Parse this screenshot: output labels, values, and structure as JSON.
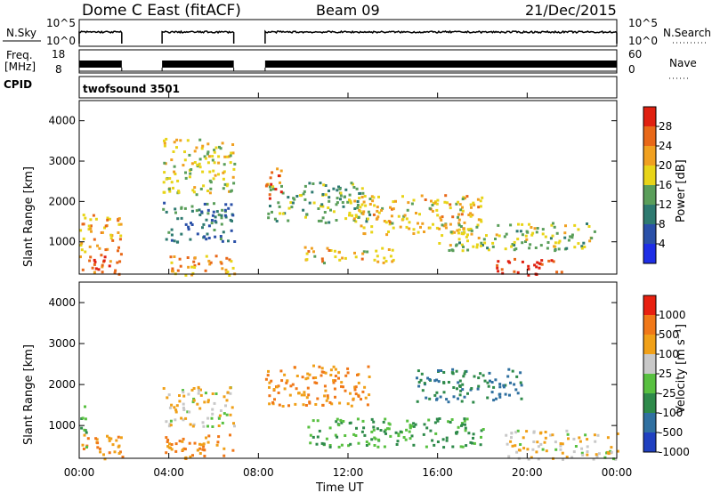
{
  "header": {
    "station": "Dome C East (fitACF)",
    "beam": "Beam 09",
    "date": "21/Dec/2015"
  },
  "top_panels": {
    "nsky_label": "N.Sky",
    "nsky_ticks": [
      "10^5",
      "10^0"
    ],
    "nsearch_label": "N.Search",
    "nsearch_ticks": [
      "10^5",
      "10^0"
    ],
    "freq_label_1": "Freq.",
    "freq_label_2": "[MHz]",
    "freq_ticks": [
      "18",
      "8"
    ],
    "nave_label": "Nave",
    "nave_ticks": [
      "60",
      "0"
    ],
    "cpid_label": "CPID",
    "cpid_value": "twofsound 3501"
  },
  "axes": {
    "xlabel": "Time UT",
    "x_ticks": [
      "00:00",
      "04:00",
      "08:00",
      "12:00",
      "16:00",
      "20:00",
      "00:00"
    ],
    "ylabel": "Slant Range [km]",
    "y_ticks": [
      "1000",
      "2000",
      "3000",
      "4000"
    ]
  },
  "power_scale": {
    "label": "Power [dB]",
    "ticks": [
      "4",
      "8",
      "12",
      "16",
      "20",
      "24",
      "28"
    ],
    "colors": [
      "#1e2ee6",
      "#2a50a8",
      "#2e7a70",
      "#5a9e5a",
      "#e8d418",
      "#f0a020",
      "#e86818",
      "#e02010"
    ]
  },
  "velocity_scale": {
    "label": "Velocity [m s⁻¹]",
    "ticks": [
      "1000",
      "500",
      "100",
      "25",
      "-25",
      "-100",
      "-500",
      "-1000"
    ],
    "colors": [
      "#2040c0",
      "#3070a0",
      "#2e8a4a",
      "#58c040",
      "#c8c8c8",
      "#f0a018",
      "#f07818",
      "#e82010"
    ]
  },
  "chart_data": [
    {
      "type": "heatmap",
      "name": "power",
      "x_unit": "hours UT",
      "xlim": [
        0,
        24
      ],
      "ylim": [
        200,
        4500
      ],
      "colorbar_range": [
        0,
        32
      ],
      "data_gaps_hours": [
        [
          1.9,
          3.7
        ],
        [
          6.9,
          8.3
        ]
      ],
      "regions": [
        {
          "t": [
            0.0,
            1.9
          ],
          "r": [
            200,
            700
          ],
          "value": 26
        },
        {
          "t": [
            0.0,
            1.9
          ],
          "r": [
            700,
            1700
          ],
          "value": 22
        },
        {
          "t": [
            3.7,
            6.9
          ],
          "r": [
            200,
            700
          ],
          "value": 22
        },
        {
          "t": [
            3.7,
            6.9
          ],
          "r": [
            1000,
            2000
          ],
          "value": 10
        },
        {
          "t": [
            3.7,
            6.9
          ],
          "r": [
            2200,
            3600
          ],
          "value": 18
        },
        {
          "t": [
            8.3,
            13.0
          ],
          "r": [
            1500,
            2500
          ],
          "value": 14
        },
        {
          "t": [
            8.3,
            9.0
          ],
          "r": [
            2100,
            2900
          ],
          "value": 26
        },
        {
          "t": [
            10.0,
            14.0
          ],
          "r": [
            500,
            900
          ],
          "value": 20
        },
        {
          "t": [
            12.0,
            18.0
          ],
          "r": [
            1200,
            2200
          ],
          "value": 20
        },
        {
          "t": [
            16.0,
            23.0
          ],
          "r": [
            800,
            1500
          ],
          "value": 16
        },
        {
          "t": [
            18.5,
            21.5
          ],
          "r": [
            200,
            600
          ],
          "value": 30
        }
      ]
    },
    {
      "type": "heatmap",
      "name": "velocity",
      "x_unit": "hours UT",
      "xlim": [
        0,
        24
      ],
      "ylim": [
        200,
        4500
      ],
      "colorbar_range": [
        -1000,
        1000
      ],
      "data_gaps_hours": [
        [
          1.9,
          3.7
        ],
        [
          6.9,
          8.3
        ]
      ],
      "regions": [
        {
          "t": [
            0.0,
            1.9
          ],
          "r": [
            200,
            800
          ],
          "value": -100
        },
        {
          "t": [
            0.0,
            0.3
          ],
          "r": [
            500,
            1700
          ],
          "value": 100
        },
        {
          "t": [
            3.7,
            6.9
          ],
          "r": [
            200,
            800
          ],
          "value": -100
        },
        {
          "t": [
            3.7,
            6.9
          ],
          "r": [
            1000,
            2000
          ],
          "value": -25
        },
        {
          "t": [
            8.3,
            13.0
          ],
          "r": [
            1500,
            2500
          ],
          "value": -100
        },
        {
          "t": [
            10.0,
            18.0
          ],
          "r": [
            500,
            1200
          ],
          "value": 100
        },
        {
          "t": [
            15.0,
            20.0
          ],
          "r": [
            1600,
            2400
          ],
          "value": 500
        },
        {
          "t": [
            19.0,
            24.0
          ],
          "r": [
            200,
            900
          ],
          "value": -25
        }
      ]
    }
  ]
}
